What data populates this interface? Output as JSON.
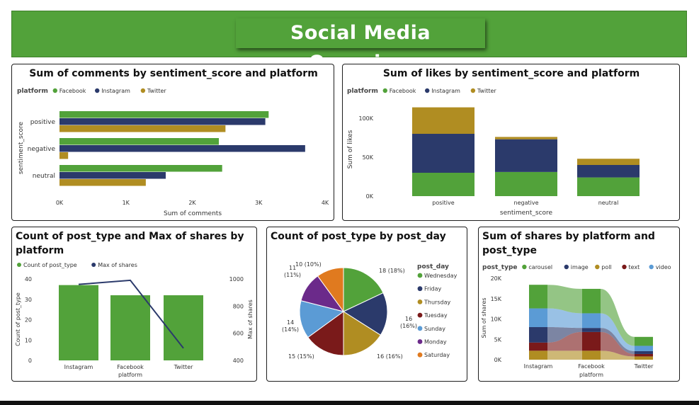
{
  "dashboard": {
    "title": "Social Media Overview"
  },
  "colors": {
    "banner": "#52a23a",
    "Facebook": "#52a23a",
    "Instagram": "#2b3a6b",
    "Twitter": "#b08d22",
    "carousel": "#52a23a",
    "image": "#2b3a6b",
    "poll": "#b08d22",
    "text": "#7a1a1a",
    "video": "#5b9bd5",
    "Wednesday": "#52a23a",
    "Friday": "#2b3a6b",
    "Thursday": "#b08d22",
    "Tuesday": "#7a1a1a",
    "Sunday": "#5b9bd5",
    "Monday": "#6b2a8a",
    "Saturday": "#e07a1f",
    "line": "#2b3a6b"
  },
  "chart_data": [
    {
      "type": "bar",
      "orientation": "horizontal",
      "title": "Sum of comments by sentiment_score and platform",
      "legend_title": "platform",
      "legend": [
        "Facebook",
        "Instagram",
        "Twitter"
      ],
      "categories": [
        "positive",
        "negative",
        "neutral"
      ],
      "series": [
        {
          "name": "Facebook",
          "values": [
            3150,
            2400,
            2450
          ]
        },
        {
          "name": "Instagram",
          "values": [
            3100,
            3700,
            1600
          ]
        },
        {
          "name": "Twitter",
          "values": [
            2500,
            130,
            1300
          ]
        }
      ],
      "xlabel": "Sum of comments",
      "ylabel": "sentiment_score",
      "xlim": [
        0,
        4000
      ],
      "xticks": [
        "0K",
        "1K",
        "2K",
        "3K",
        "4K"
      ]
    },
    {
      "type": "bar",
      "stacked": true,
      "title": "Sum of likes by sentiment_score and platform",
      "legend_title": "platform",
      "legend": [
        "Facebook",
        "Instagram",
        "Twitter"
      ],
      "categories": [
        "positive",
        "negative",
        "neutral"
      ],
      "series": [
        {
          "name": "Facebook",
          "values": [
            30000,
            31000,
            24000
          ]
        },
        {
          "name": "Instagram",
          "values": [
            50000,
            42000,
            16000
          ]
        },
        {
          "name": "Twitter",
          "values": [
            34000,
            3000,
            8000
          ]
        }
      ],
      "xlabel": "sentiment_score",
      "ylabel": "Sum of likes",
      "ylim": [
        0,
        120000
      ],
      "yticks": [
        "0K",
        "50K",
        "100K"
      ]
    },
    {
      "type": "bar",
      "combo": "bar+line",
      "title_lines": [
        "Count of post_type and Max of shares by",
        "platform"
      ],
      "legend": [
        "Count of post_type",
        "Max of shares"
      ],
      "categories": [
        "Instagram",
        "Facebook",
        "Twitter"
      ],
      "bars": {
        "name": "Count of post_type",
        "values": [
          37,
          32,
          32
        ]
      },
      "line": {
        "name": "Max of shares",
        "values": [
          960,
          990,
          490
        ]
      },
      "xlabel": "platform",
      "ylabel_left": "Count of post_type",
      "ylabel_right": "Max of shares",
      "ylim_left": [
        0,
        40
      ],
      "yticks_left": [
        "0",
        "10",
        "20",
        "30",
        "40"
      ],
      "ylim_right": [
        400,
        1000
      ],
      "yticks_right": [
        "400",
        "600",
        "800",
        "1000"
      ]
    },
    {
      "type": "pie",
      "title": "Count of post_type by post_day",
      "legend_title": "post_day",
      "slices": [
        {
          "label": "Wednesday",
          "value": 18,
          "text": "18 (18%)"
        },
        {
          "label": "Friday",
          "value": 16,
          "text_lines": [
            "16",
            "(16%)"
          ]
        },
        {
          "label": "Thursday",
          "value": 16,
          "text": "16 (16%)"
        },
        {
          "label": "Tuesday",
          "value": 15,
          "text": "15 (15%)"
        },
        {
          "label": "Sunday",
          "value": 14,
          "text_lines": [
            "14",
            "(14%)"
          ]
        },
        {
          "label": "Monday",
          "value": 11,
          "text_lines": [
            "11",
            "(11%)"
          ]
        },
        {
          "label": "Saturday",
          "value": 10,
          "text": "10 (10%)"
        }
      ]
    },
    {
      "type": "area",
      "variant": "ribbon",
      "title_lines": [
        "Sum of shares by platform and",
        "post_type"
      ],
      "legend_title": "post_type",
      "legend": [
        "carousel",
        "image",
        "poll",
        "text",
        "video"
      ],
      "categories": [
        "Instagram",
        "Facebook",
        "Twitter"
      ],
      "series": [
        {
          "name": "carousel",
          "values": [
            5800,
            6000,
            2200
          ]
        },
        {
          "name": "video",
          "values": [
            4600,
            3600,
            1300
          ]
        },
        {
          "name": "image",
          "values": [
            3800,
            1000,
            700
          ]
        },
        {
          "name": "text",
          "values": [
            2000,
            4600,
            600
          ]
        },
        {
          "name": "poll",
          "values": [
            2200,
            2200,
            800
          ]
        }
      ],
      "xlabel": "platform",
      "ylabel": "Sum of shares",
      "ylim": [
        0,
        20000
      ],
      "yticks": [
        "0K",
        "5K",
        "10K",
        "15K",
        "20K"
      ]
    }
  ]
}
